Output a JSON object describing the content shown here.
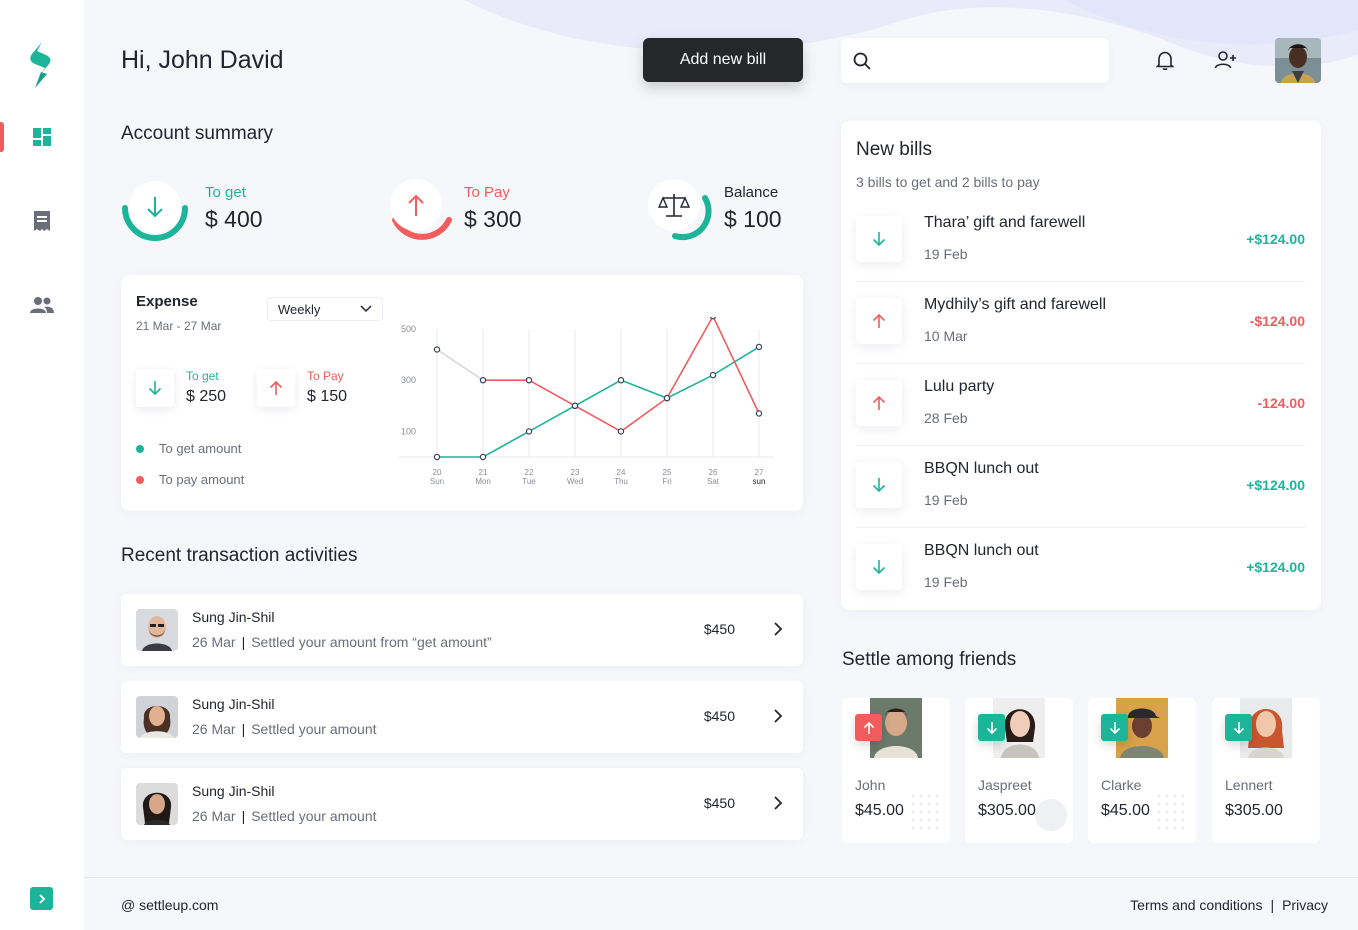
{
  "colors": {
    "green": "#1cb59a",
    "red": "#f25c5c",
    "dark": "#25272b"
  },
  "header": {
    "greeting": "Hi, John David",
    "add_bill_label": "Add new bill",
    "search_placeholder": ""
  },
  "sidebar": {
    "icons": [
      "logo-icon",
      "dashboard-icon",
      "receipt-icon",
      "friends-icon",
      "expand-icon"
    ]
  },
  "summary": {
    "title": "Account summary",
    "items": [
      {
        "label": "To get",
        "amount": "$ 400"
      },
      {
        "label": "To Pay",
        "amount": "$ 300"
      },
      {
        "label": "Balance",
        "amount": "$ 100"
      }
    ]
  },
  "expense": {
    "title": "Expense",
    "range": "21 Mar - 27 Mar",
    "period": "Weekly",
    "to_get_label": "To get",
    "to_get_amount": "$ 250",
    "to_pay_label": "To Pay",
    "to_pay_amount": "$ 150",
    "legend_get": "To get amount",
    "legend_pay": "To pay amount"
  },
  "chart_data": {
    "type": "line",
    "categories": [
      "20 Sun",
      "21 Mon",
      "22 Tue",
      "23 Wed",
      "24 Thu",
      "25 Fri",
      "26 Sat",
      "27 sun"
    ],
    "x_days": [
      "20",
      "21",
      "22",
      "23",
      "24",
      "25",
      "26",
      "27"
    ],
    "x_weekdays": [
      "Sun",
      "Mon",
      "Tue",
      "Wed",
      "Thu",
      "Fri",
      "Sat",
      "sun"
    ],
    "y_ticks": [
      "500",
      "300",
      "100"
    ],
    "ylim": [
      0,
      500
    ],
    "grid": "vertical",
    "series": [
      {
        "name": "To get amount",
        "color": "#1cb59a",
        "values": [
          0,
          0,
          100,
          200,
          300,
          230,
          320,
          430
        ]
      },
      {
        "name": "To pay amount",
        "color": "#f25c5c",
        "values": [
          420,
          300,
          300,
          200,
          100,
          230,
          550,
          170
        ]
      }
    ]
  },
  "transactions": {
    "title": "Recent transaction activities",
    "items": [
      {
        "name": "Sung Jin-Shil",
        "date": "26 Mar",
        "desc": "Settled your amount from “get amount”",
        "amount": "$450"
      },
      {
        "name": "Sung Jin-Shil",
        "date": "26 Mar",
        "desc": "Settled your amount",
        "amount": "$450"
      },
      {
        "name": "Sung Jin-Shil",
        "date": "26 Mar",
        "desc": "Settled your amount",
        "amount": "$450"
      }
    ]
  },
  "bills": {
    "title": "New bills",
    "subtitle": "3 bills to get and 2 bills to pay",
    "items": [
      {
        "name": "Thara’ gift and farewell",
        "date": "19 Feb",
        "amount": "+$124.00",
        "dir": "get"
      },
      {
        "name": "Mydhily’s gift and farewell",
        "date": "10 Mar",
        "amount": "-$124.00",
        "dir": "pay"
      },
      {
        "name": "Lulu party",
        "date": "28 Feb",
        "amount": "-124.00",
        "dir": "pay"
      },
      {
        "name": "BBQN lunch out",
        "date": "19 Feb",
        "amount": "+$124.00",
        "dir": "get"
      },
      {
        "name": "BBQN lunch out",
        "date": "19 Feb",
        "amount": "+$124.00",
        "dir": "get"
      }
    ]
  },
  "friends": {
    "title": "Settle among friends",
    "items": [
      {
        "name": "John",
        "amount": "$45.00",
        "dir": "pay"
      },
      {
        "name": "Jaspreet",
        "amount": "$305.00",
        "dir": "get"
      },
      {
        "name": "Clarke",
        "amount": "$45.00",
        "dir": "get"
      },
      {
        "name": "Lennert",
        "amount": "$305.00",
        "dir": "get"
      }
    ]
  },
  "footer": {
    "site": "@ settleup.com",
    "terms": "Terms and conditions",
    "separator": "|",
    "privacy": "Privacy"
  }
}
